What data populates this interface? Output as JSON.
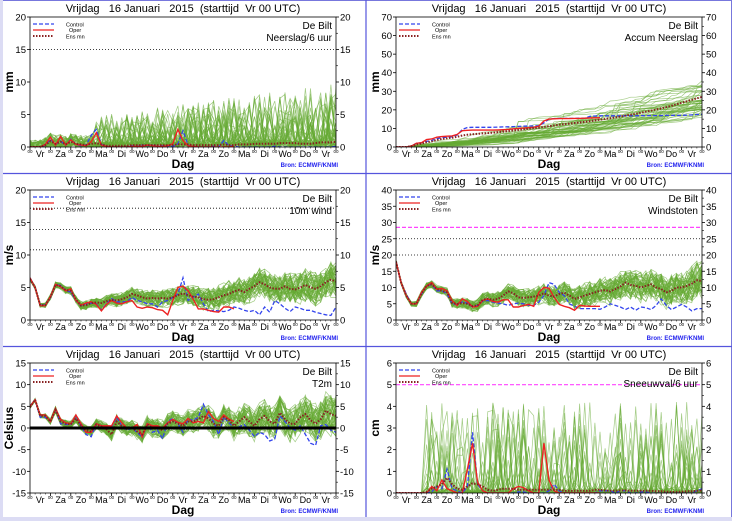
{
  "page": {
    "frame_color": "#6666dd",
    "source_label": "Bron: ECMWF/KNMI",
    "source_color": "#2222ee",
    "x_label": "Dag",
    "x_day_labels": [
      "Vr",
      "Za",
      "Zo",
      "Ma",
      "Di",
      "Wo",
      "Do",
      "Vr",
      "Za",
      "Zo",
      "Ma",
      "Di",
      "Wo",
      "Do",
      "Vr"
    ],
    "x_tick_label": "00",
    "colors": {
      "control": "#3344ee",
      "oper": "#ee2222",
      "ens_mean": "#882222",
      "members": "#66aa33",
      "threshold": "#ff44ff",
      "zero_line": "#000000"
    },
    "legend": {
      "control": "Control",
      "oper": "Oper",
      "ens_mean": "Ens mn"
    }
  },
  "chart_data": [
    {
      "id": "neerslag6",
      "type": "line",
      "title": "Vrijdag   16 Januari   2015  (starttijd  Vr 00 UTC)",
      "location": "De Bilt",
      "subtitle": "Neerslag/6 uur",
      "xlabel": "Dag",
      "ylabel": "mm",
      "ylim": [
        0,
        20
      ],
      "yticks": [
        0,
        5,
        10,
        15,
        20
      ],
      "dotted_lines": [
        15
      ],
      "threshold_lines": [],
      "zero_bold": false,
      "member_kind": "precip",
      "member_base": 0.6,
      "member_spread_start": 1.5,
      "member_spread_end": 4.5,
      "oper_days": 10,
      "control": [
        0,
        0,
        0,
        0.3,
        1.2,
        0.4,
        0.9,
        0.3,
        1.2,
        0.4,
        0.2,
        0.3,
        1.8,
        2.7,
        0.4,
        0.1,
        0,
        0,
        0,
        0,
        0.2,
        0.1,
        0.3,
        0.2,
        0.3,
        0.1,
        0.2,
        0.1,
        0.1,
        0.5,
        2.5,
        0.3,
        0.1,
        0,
        0,
        0,
        0.1,
        0,
        1.0,
        0.2,
        0.1,
        0,
        0,
        0,
        0,
        0,
        0,
        0,
        0.1,
        0,
        0,
        0,
        0,
        0,
        0,
        0,
        0,
        0,
        0,
        0,
        0.1
      ],
      "oper": [
        0,
        0,
        0,
        0.4,
        1.5,
        0.3,
        1.6,
        0.3,
        1.1,
        0.4,
        0.3,
        0.2,
        0.8,
        2.2,
        0.3,
        0.1,
        0,
        0,
        0,
        0,
        0.1,
        0.1,
        0.1,
        0.3,
        0.2,
        0.1,
        0.1,
        0.2,
        0.5,
        2.7,
        1.0,
        0.2,
        0.1,
        0,
        0,
        0,
        0,
        0,
        0,
        0,
        0.1
      ],
      "ens_mean": [
        0,
        0,
        0,
        0.3,
        0.9,
        0.5,
        0.8,
        0.4,
        0.8,
        0.5,
        0.4,
        0.3,
        0.5,
        0.6,
        0.4,
        0.2,
        0.2,
        0.2,
        0.2,
        0.2,
        0.3,
        0.3,
        0.3,
        0.3,
        0.3,
        0.3,
        0.3,
        0.3,
        0.3,
        0.4,
        0.4,
        0.4,
        0.3,
        0.3,
        0.3,
        0.3,
        0.3,
        0.3,
        0.4,
        0.3,
        0.3,
        0.4,
        0.4,
        0.4,
        0.5,
        0.5,
        0.5,
        0.5,
        0.5,
        0.6,
        0.6,
        0.6,
        0.6,
        0.5,
        0.5,
        0.5,
        0.6,
        0.7,
        0.7,
        0.7,
        0.8
      ]
    },
    {
      "id": "accum",
      "type": "line",
      "title": "Vrijdag   16 Januari   2015  (starttijd  Vr 00 UTC)",
      "location": "De Bilt",
      "subtitle": "Accum Neerslag",
      "xlabel": "Dag",
      "ylabel": "mm",
      "ylim": [
        0,
        70
      ],
      "yticks": [
        0,
        10,
        20,
        30,
        40,
        50,
        60,
        70
      ],
      "dotted_lines": [],
      "threshold_lines": [],
      "zero_bold": false,
      "member_kind": "accum",
      "member_base": 0,
      "member_spread_start": 0.5,
      "member_spread_end": 22,
      "oper_days": 10,
      "control": [
        0,
        0,
        0,
        0.5,
        2,
        2.3,
        3,
        3.5,
        4.5,
        5,
        5.3,
        5.5,
        6.5,
        9.5,
        10.5,
        10.6,
        10.6,
        10.6,
        10.6,
        10.6,
        10.7,
        10.8,
        10.9,
        11,
        11.1,
        11.2,
        11.3,
        11.3,
        11.5,
        13,
        15,
        15.3,
        15.4,
        15.4,
        15.4,
        15.4,
        15.5,
        15.5,
        16.5,
        16.7,
        16.8,
        16.8,
        16.8,
        16.8,
        16.8,
        16.8,
        16.8,
        16.8,
        16.9,
        16.9,
        16.9,
        16.9,
        16.9,
        17,
        17,
        17,
        17,
        17.2,
        17.3,
        17.5,
        17.6
      ],
      "oper": [
        0,
        0,
        0,
        0.5,
        2,
        2.3,
        4,
        4.3,
        5.3,
        5.6,
        5.8,
        6,
        6.8,
        8.8,
        9,
        9.1,
        9.1,
        9.1,
        9.1,
        9.1,
        9.2,
        9.3,
        9.5,
        9.8,
        10,
        10.2,
        10.4,
        10.6,
        11.2,
        14,
        15,
        15.2,
        15.3,
        15.3,
        15.3,
        15.4,
        15.4,
        15.5,
        15.6,
        15.7,
        15.8
      ],
      "ens_mean": [
        0,
        0,
        0,
        0.4,
        1.3,
        1.8,
        2.6,
        3,
        3.8,
        4.3,
        4.7,
        5,
        5.5,
        6.2,
        6.6,
        6.9,
        7.1,
        7.3,
        7.5,
        7.7,
        8,
        8.3,
        8.6,
        8.9,
        9.2,
        9.5,
        9.8,
        10.1,
        10.4,
        10.8,
        11.2,
        11.6,
        12,
        12.3,
        12.6,
        12.9,
        13.2,
        13.5,
        13.9,
        14.3,
        14.7,
        15.1,
        15.5,
        15.9,
        16.4,
        16.9,
        17.4,
        17.9,
        18.4,
        19,
        19.6,
        20.2,
        20.8,
        21.5,
        22.2,
        23,
        23.8,
        24.6,
        25.4,
        26.2,
        27
      ]
    },
    {
      "id": "wind10m",
      "type": "line",
      "title": "Vrijdag   16 Januari   2015  (starttijd  Vr 00 UTC)",
      "location": "De Bilt",
      "subtitle": "10m wind",
      "xlabel": "Dag",
      "ylabel": "m/s",
      "ylim": [
        0,
        20
      ],
      "yticks": [
        0,
        5,
        10,
        15,
        20
      ],
      "dotted_lines": [
        10.8,
        13.9,
        17.2
      ],
      "threshold_lines": [],
      "zero_bold": false,
      "member_kind": "level",
      "member_base": 0,
      "member_spread_start": 0.3,
      "member_spread_end": 3.2,
      "oper_days": 10,
      "control": [
        6.5,
        5,
        2.3,
        2.3,
        3.5,
        5.5,
        5.3,
        4.5,
        4.3,
        3,
        2.2,
        2.5,
        2.6,
        2.5,
        1.5,
        2.5,
        3.3,
        2.8,
        2.8,
        2.8,
        3.5,
        3,
        2.8,
        2.5,
        2.5,
        2,
        2.8,
        3,
        3.5,
        4,
        6.5,
        3,
        3.5,
        4,
        2.5,
        1.3,
        1.5,
        1.4,
        1.3,
        1.5,
        2,
        1.8,
        1.5,
        1.3,
        1.5,
        0.8,
        2,
        1.2,
        3,
        2.5,
        1.8,
        1.3,
        2,
        1.8,
        1.5,
        1.5,
        1.2,
        1,
        0.8,
        0.7,
        2
      ],
      "oper": [
        6.5,
        5,
        2.2,
        2.2,
        3.6,
        5.5,
        5.1,
        4.5,
        4.8,
        3,
        2.3,
        2.6,
        2.8,
        2.4,
        1.4,
        2.4,
        3,
        2.6,
        2.5,
        2.8,
        3,
        2,
        1.8,
        2,
        1.9,
        1.6,
        1.5,
        0.8,
        3,
        5,
        5.2,
        4.5,
        3.2,
        1.7,
        1.7,
        1.5,
        1.3,
        1.2,
        2,
        2,
        1.7
      ],
      "ens_mean": [
        6.3,
        5,
        2.3,
        2.3,
        3.5,
        5.4,
        5.2,
        4.6,
        4.5,
        3.2,
        2.2,
        2.3,
        2.6,
        2.7,
        2.6,
        2.9,
        3.1,
        3,
        3.2,
        3.5,
        4,
        3.8,
        3.5,
        3.3,
        3.4,
        3.3,
        3.4,
        3.3,
        3.5,
        3.8,
        4.1,
        3.8,
        3.6,
        3.5,
        3.2,
        3.1,
        3.2,
        3.5,
        3.8,
        4,
        4.4,
        4.6,
        4.3,
        4.8,
        5.2,
        5.8,
        5.5,
        5,
        4.8,
        4.8,
        5.2,
        4.8,
        4.7,
        5,
        5.4,
        5,
        4.8,
        5.2,
        5.8,
        6.2,
        5.9
      ]
    },
    {
      "id": "windstoten",
      "type": "line",
      "title": "Vrijdag   16 Januari   2015  (starttijd  Vr 00 UTC)",
      "location": "De Bilt",
      "subtitle": "Windstoten",
      "xlabel": "Dag",
      "ylabel": "m/s",
      "ylim": [
        0,
        40
      ],
      "yticks": [
        0,
        5,
        10,
        15,
        20,
        25,
        30,
        35,
        40
      ],
      "dotted_lines": [
        20,
        25
      ],
      "threshold_lines": [
        28.5
      ],
      "zero_bold": false,
      "member_kind": "level",
      "member_base": 0,
      "member_spread_start": 0.6,
      "member_spread_end": 6.5,
      "oper_days": 10,
      "control": [
        18,
        11.5,
        8,
        5,
        5,
        8,
        10.5,
        11,
        9,
        9,
        8,
        5,
        4.8,
        5.5,
        5.2,
        4,
        4.5,
        5.8,
        6,
        5.5,
        5.2,
        5,
        4.5,
        5,
        5.2,
        5,
        4.5,
        4.5,
        5.5,
        7.5,
        11.5,
        11,
        8.5,
        7.5,
        5,
        4.2,
        3.5,
        3.5,
        3.5,
        3.5,
        3.3,
        4,
        5,
        4.5,
        4,
        3.2,
        4,
        3,
        4,
        3.8,
        3.2,
        4.5,
        6.5,
        4.5,
        3.2,
        4,
        4.8,
        4,
        2.8,
        3.5,
        3.5
      ],
      "oper": [
        18,
        11.5,
        7.5,
        5,
        5,
        8.5,
        10.5,
        11.5,
        9.5,
        9.7,
        9,
        6,
        4.5,
        6.5,
        5.7,
        4,
        4.2,
        6,
        6.5,
        5.7,
        5.5,
        6.2,
        6.2,
        4,
        4,
        4.5,
        4.8,
        4.2,
        8.5,
        10,
        9.8,
        7,
        4.8,
        4.2,
        3.8,
        3,
        4.5,
        4.3,
        4.2,
        4.2,
        4.2
      ],
      "ens_mean": [
        18,
        11.5,
        7.5,
        5,
        5,
        8,
        10.5,
        11,
        9.5,
        9,
        8.5,
        5.2,
        5,
        5.2,
        5,
        4.3,
        4.5,
        6.2,
        6.6,
        6.2,
        6.5,
        7.5,
        8.8,
        8.2,
        7,
        6.8,
        7,
        7.2,
        7.5,
        8.2,
        7.5,
        7.2,
        8,
        8.4,
        7.5,
        6.5,
        7,
        7.5,
        8,
        8.5,
        9,
        9.2,
        8.8,
        9.5,
        10.3,
        11.5,
        10.8,
        10.5,
        10,
        10.5,
        11,
        10,
        9.5,
        8.5,
        9,
        10,
        10,
        10.5,
        11.2,
        12.2,
        12
      ]
    },
    {
      "id": "t2m",
      "type": "line",
      "title": "Vrijdag   16 Januari   2015  (starttijd  Vr 00 UTC)",
      "location": "De Bilt",
      "subtitle": "T2m",
      "xlabel": "Dag",
      "ylabel": "Celsius",
      "ylim": [
        -15,
        15
      ],
      "yticks": [
        -15,
        -10,
        -5,
        0,
        5,
        10,
        15
      ],
      "dotted_lines": [],
      "threshold_lines": [],
      "zero_bold": true,
      "member_kind": "level",
      "member_base": 0,
      "member_spread_start": 0.4,
      "member_spread_end": 5.5,
      "oper_days": 10,
      "control": [
        5,
        6.5,
        2.5,
        2.5,
        1.5,
        4.5,
        1,
        0.8,
        0.8,
        2.8,
        0.5,
        -1.5,
        -2,
        1,
        0.5,
        0.3,
        0.3,
        2.5,
        0.5,
        -0.5,
        0,
        -1,
        -2.2,
        1,
        -1,
        -0.5,
        -2.5,
        1.5,
        2.2,
        1,
        -1,
        2,
        1.8,
        2.5,
        5.5,
        3,
        1.5,
        -1.5,
        2.5,
        1.2,
        0,
        0.3,
        0.8,
        -0.5,
        -2,
        -1,
        -1.5,
        -3,
        -2.5,
        2.8,
        1.5,
        0,
        -0.5,
        0.5,
        -1.5,
        -3.5,
        -4,
        0.5,
        0.8,
        -0.5,
        -1
      ],
      "oper": [
        5,
        6.5,
        3,
        3,
        1.5,
        4.5,
        2,
        1.2,
        1,
        3,
        1,
        -1,
        -1,
        1,
        0.5,
        0.5,
        0.5,
        2.8,
        1.2,
        0,
        0,
        0.8,
        -2,
        1,
        0.5,
        0.5,
        0,
        1.2,
        2,
        1.3,
        1,
        2.2,
        1.2,
        1.5,
        1.2,
        3.8,
        2.2,
        1.5,
        3,
        2,
        1.5
      ],
      "ens_mean": [
        4.8,
        6.5,
        2.8,
        2.8,
        1.5,
        4.2,
        1.5,
        1,
        0.8,
        2.2,
        0.5,
        -0.5,
        -0.8,
        0.8,
        0.3,
        -0.3,
        -1.5,
        1.5,
        0.5,
        -0.2,
        0,
        -0.8,
        -1.5,
        0.8,
        0,
        0,
        -0.5,
        1,
        1.5,
        1,
        0.5,
        1.5,
        1.5,
        2,
        2.8,
        2.2,
        1,
        0.5,
        2.5,
        1.8,
        0.5,
        1.5,
        2.5,
        1.5,
        0.5,
        2,
        2.8,
        1.5,
        1,
        3.5,
        2,
        1,
        1,
        2.5,
        3.2,
        1.8,
        1,
        2,
        4,
        3.2,
        2.8
      ]
    },
    {
      "id": "sneeuw",
      "type": "line",
      "title": "Vrijdag   16 Januari   2015  (starttijd  Vr 00 UTC)",
      "location": "De Bilt",
      "subtitle": "Sneeuwval/6 uur",
      "xlabel": "Dag",
      "ylabel": "cm",
      "ylim": [
        0,
        6
      ],
      "yticks": [
        0,
        1,
        2,
        3,
        4,
        5,
        6
      ],
      "dotted_lines": [],
      "threshold_lines": [
        5
      ],
      "zero_bold": false,
      "member_kind": "snow",
      "member_base": 0,
      "member_spread_start": 0.6,
      "member_spread_end": 1.2,
      "oper_days": 10,
      "control": [
        0,
        0,
        0,
        0,
        0,
        0,
        0,
        0.05,
        0.3,
        0.2,
        1.1,
        0.2,
        0.1,
        0,
        0.3,
        2.8,
        0.4,
        0.1,
        0,
        0,
        0,
        0,
        0,
        0,
        0.05,
        0.05,
        0,
        0,
        0,
        0,
        0.1,
        0.4,
        0.1,
        0,
        0,
        0,
        0,
        0,
        0,
        0,
        0.1,
        0.1,
        0.1,
        0,
        0.1,
        0.1,
        0,
        0,
        0.05,
        0.05,
        0,
        0,
        0,
        0,
        0,
        0,
        0,
        0,
        0,
        0.1,
        0.2
      ],
      "oper": [
        0,
        0,
        0,
        0,
        0,
        0,
        0,
        0.3,
        0.1,
        0.6,
        0.2,
        0.1,
        0,
        0,
        1.1,
        2.3,
        0.5,
        0.1,
        0,
        0,
        0,
        0,
        0,
        0.2,
        0.3,
        0.25,
        0.1,
        0,
        0,
        2.3,
        0.6,
        0.1,
        0,
        0,
        0,
        0,
        0,
        0,
        0,
        0,
        0
      ],
      "ens_mean": [
        0,
        0,
        0,
        0,
        0,
        0,
        0.05,
        0.2,
        0.3,
        0.4,
        0.7,
        0.4,
        0.2,
        0.15,
        0.3,
        0.45,
        0.4,
        0.3,
        0.15,
        0.1,
        0.15,
        0.2,
        0.2,
        0.2,
        0.15,
        0.15,
        0.15,
        0.15,
        0.15,
        0.15,
        0.15,
        0.15,
        0.15,
        0.1,
        0.1,
        0.1,
        0.1,
        0.1,
        0.1,
        0.15,
        0.15,
        0.12,
        0.1,
        0.1,
        0.12,
        0.12,
        0.1,
        0.1,
        0.1,
        0.1,
        0.1,
        0.08,
        0.08,
        0.06,
        0.05,
        0.05,
        0.06,
        0.08,
        0.08,
        0.1,
        0.12
      ]
    }
  ]
}
